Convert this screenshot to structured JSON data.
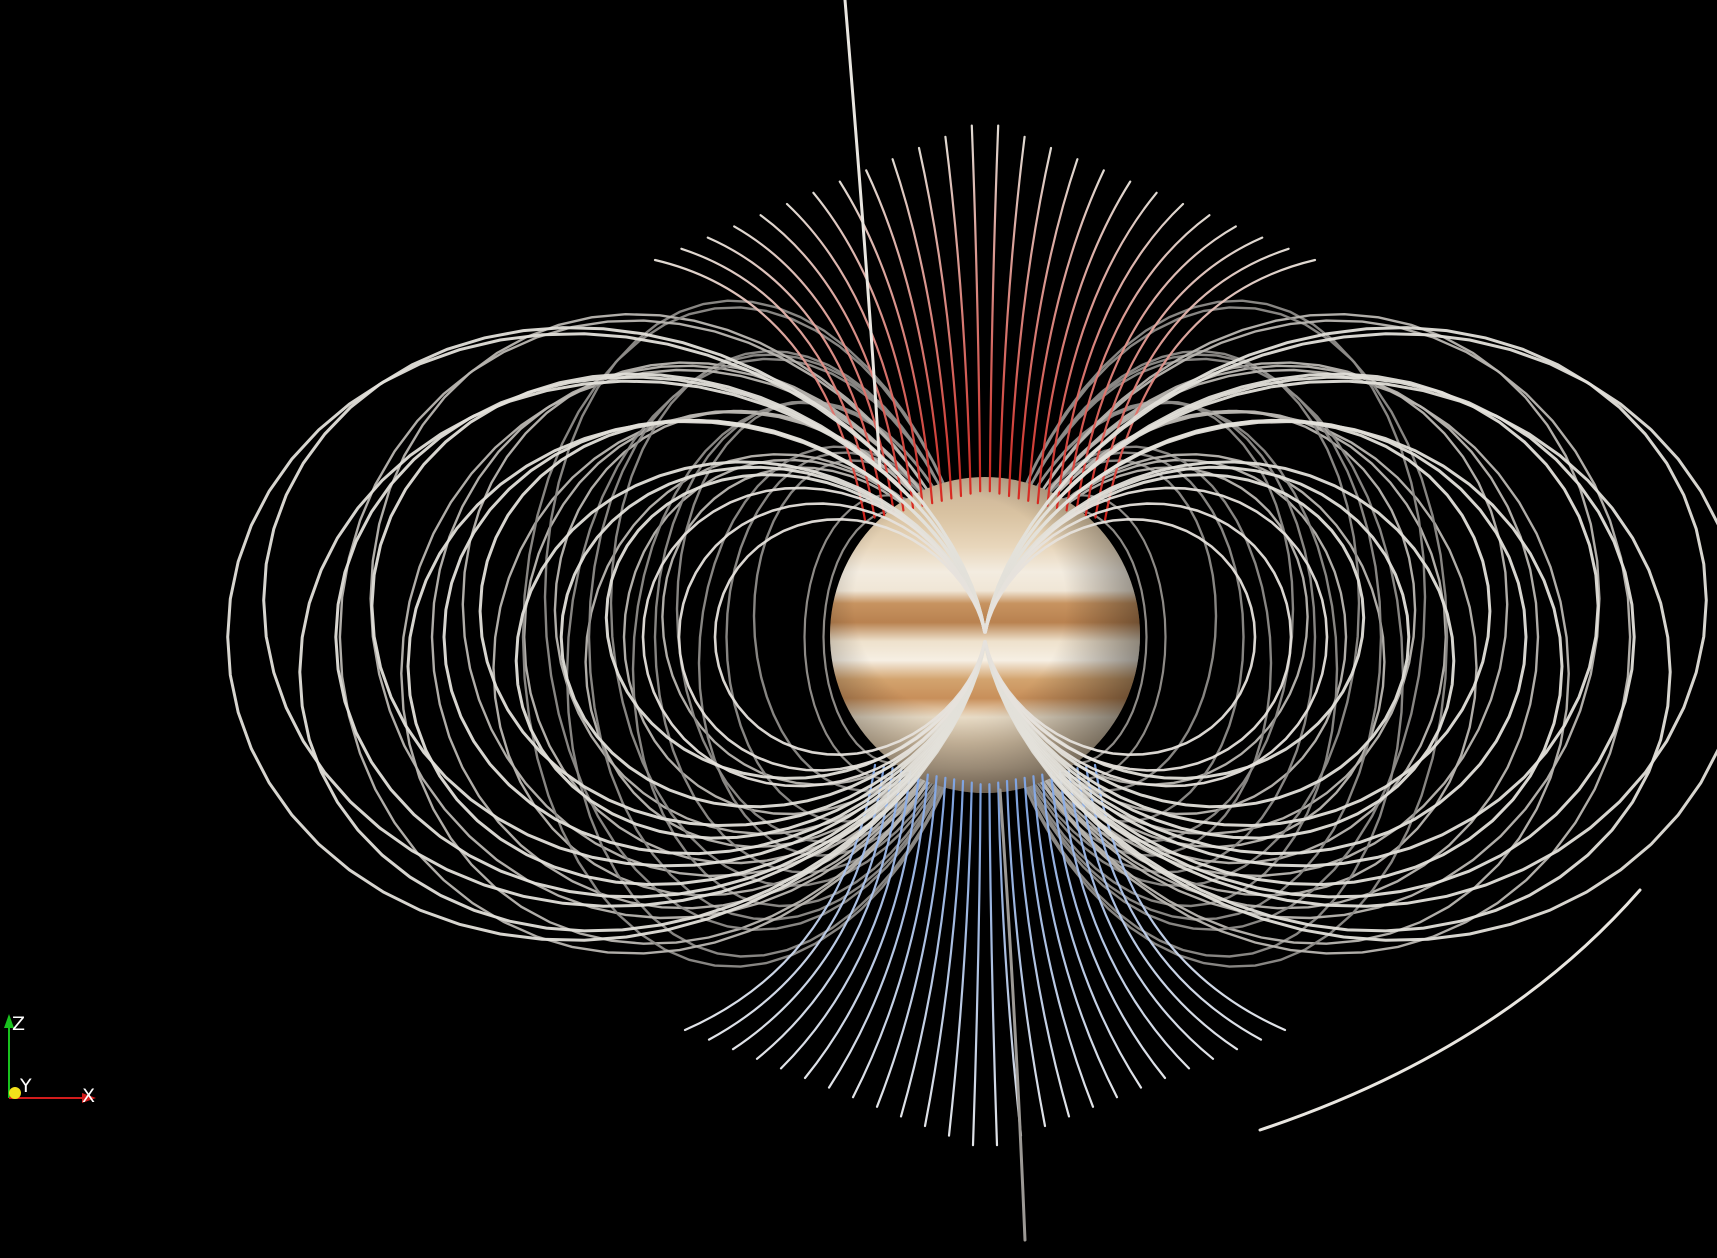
{
  "scene": {
    "subject": "planet",
    "background_color": "#000000",
    "field_line_color": "#e9e6e0",
    "north_pole_color": "#d8211a",
    "south_pole_color": "#7fa6e8",
    "planet_colors": {
      "light": "#efe3cf",
      "tan": "#d3a46f",
      "brown": "#b07c4a",
      "cream": "#f3ece0"
    }
  },
  "orientation_axes": {
    "z": {
      "label": "Z",
      "color": "#19c21e"
    },
    "y": {
      "label": "Y",
      "color": "#f2e21a"
    },
    "x": {
      "label": "X",
      "color": "#d21c1c"
    }
  }
}
